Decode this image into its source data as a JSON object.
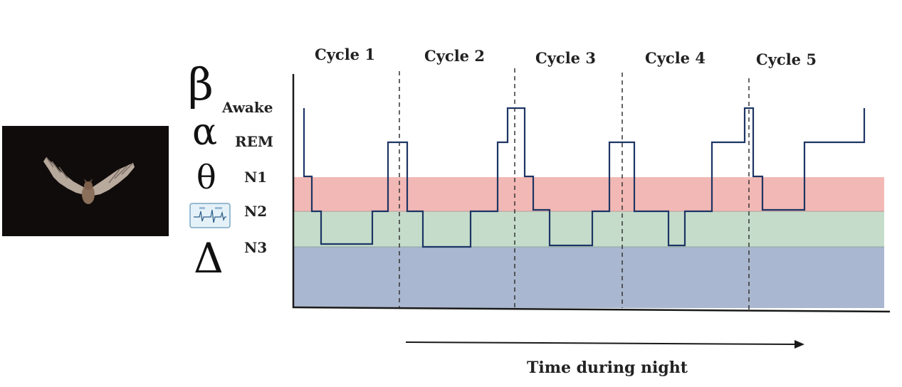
{
  "symbols": {
    "beta": "β",
    "alpha": "α",
    "theta": "θ",
    "delta": "Δ"
  },
  "stages": [
    "Awake",
    "REM",
    "N1",
    "N2",
    "N3"
  ],
  "cycles": [
    "Cycle 1",
    "Cycle 2",
    "Cycle 3",
    "Cycle 4",
    "Cycle 5"
  ],
  "x_axis_label": "Time during night",
  "colors": {
    "n1_band": "#f2b8b5",
    "n2_band": "#c5dccb",
    "n3_band": "#aab7d0",
    "trace": "#1d3564",
    "axis": "#1a1a1a"
  },
  "icons": [
    "bat-photo",
    "eeg-wave-icon"
  ]
}
